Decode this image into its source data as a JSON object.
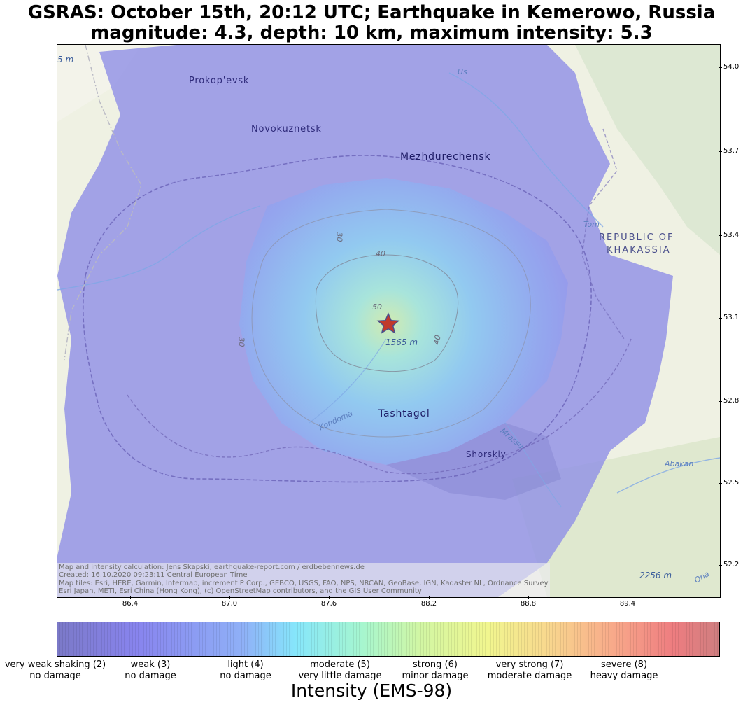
{
  "title": {
    "line1": "GSRAS: October 15th, 20:12 UTC; Earthquake in Kemerowo, Russia",
    "line2": "magnitude: 4.3, depth: 10 km, maximum intensity: 5.3"
  },
  "map": {
    "places": {
      "prokopevsk": "Prokop'evsk",
      "novokuznetsk": "Novokuznetsk",
      "mezhdurechensk": "Mezhdurechensk",
      "tashtagol": "Tashtagol",
      "shorskiy": "Shorskiy",
      "khakassia_line1": "REPUBLIC OF",
      "khakassia_line2": "KHAKASSIA"
    },
    "elevations": {
      "top_left": "5 m",
      "center": "1565 m",
      "bottom_right": "2256 m"
    },
    "rivers": {
      "us": "Us",
      "tom": "Tom",
      "kondoma": "Kondoma",
      "mrassu": "Mrassu",
      "abakan": "Abakan",
      "ona": "Ona"
    },
    "contours": {
      "c40a": "40",
      "c40b": "40",
      "c30a": "30",
      "c30b": "30",
      "c50": "50"
    },
    "attribution": {
      "line1": "Map and intensity calculation: Jens Skapski, earthquake-report.com / erdbebennews.de",
      "line2": "Created: 16.10.2020 09:23:11 Central European Time",
      "line3": "Map tiles: Esri, HERE, Garmin, Intermap, increment P Corp., GEBCO, USGS, FAO, NPS, NRCAN, GeoBase, IGN, Kadaster NL, Ordnance Survey,",
      "line4": "Esri Japan, METI, Esri China (Hong Kong), (c) OpenStreetMap contributors, and the GIS User Community"
    },
    "epicenter": {
      "longitude": 88.0,
      "latitude": 53.1,
      "marker_color": "#c0392b"
    },
    "x_ticks": [
      "86.4",
      "87.0",
      "87.6",
      "88.2",
      "88.8",
      "89.4"
    ],
    "y_ticks": [
      "54.0",
      "53.7",
      "53.4",
      "53.1",
      "52.8",
      "52.5",
      "52.2"
    ]
  },
  "colorbar": {
    "title": "Intensity (EMS-98)",
    "labels": [
      {
        "line1": "very weak shaking (2)",
        "line2": "no damage"
      },
      {
        "line1": "weak (3)",
        "line2": "no damage"
      },
      {
        "line1": "light (4)",
        "line2": "no damage"
      },
      {
        "line1": "moderate (5)",
        "line2": "very little damage"
      },
      {
        "line1": "strong (6)",
        "line2": "minor damage"
      },
      {
        "line1": "very strong (7)",
        "line2": "moderate damage"
      },
      {
        "line1": "severe (8)",
        "line2": "heavy damage"
      }
    ]
  }
}
